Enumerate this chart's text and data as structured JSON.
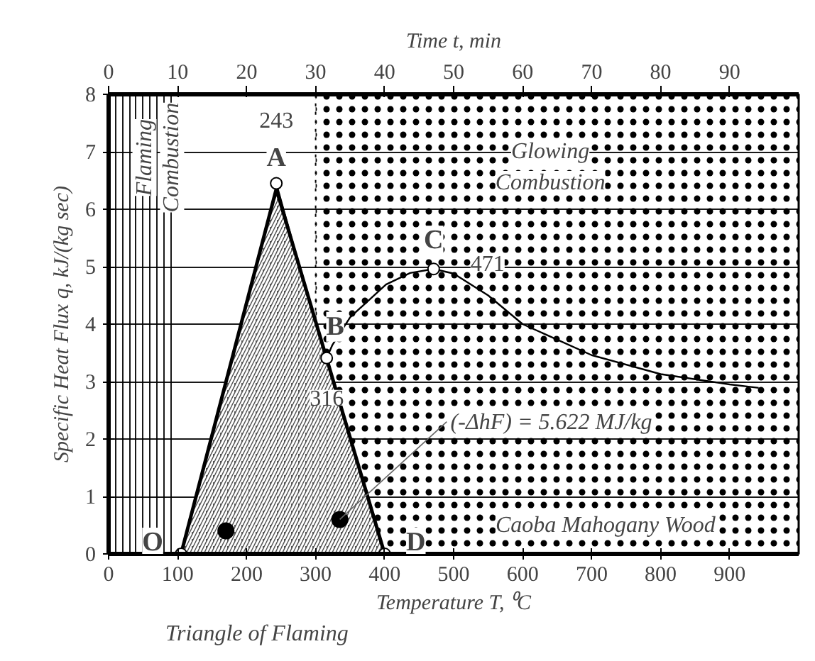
{
  "chart_data": {
    "type": "line",
    "xlabel": "Temperature T, ⁰C",
    "ylabel": "Specific Heat Flux q, kJ/(kg sec)",
    "x2label": "Time t, min",
    "xlim": [
      0,
      1000
    ],
    "xticks": [
      0,
      100,
      200,
      300,
      400,
      500,
      600,
      700,
      800,
      900
    ],
    "x2lim": [
      0,
      100
    ],
    "x2ticks": [
      0,
      10,
      20,
      30,
      40,
      50,
      60,
      70,
      80,
      90
    ],
    "ylim": [
      0,
      8
    ],
    "yticks": [
      0,
      1,
      2,
      3,
      4,
      5,
      6,
      7,
      8
    ],
    "grid": true,
    "series": [
      {
        "type": "area",
        "color": "#555555",
        "x": [
          105,
          243,
          400
        ],
        "values": [
          0,
          6.35,
          0
        ]
      },
      {
        "color": "#000000",
        "marker": "none",
        "x": [
          243,
          280,
          316,
          324,
          350,
          402,
          437,
          471,
          500,
          550,
          600,
          700,
          800,
          900,
          942
        ],
        "values": [
          6.45,
          4.85,
          3.41,
          3.63,
          4.12,
          4.69,
          4.89,
          4.96,
          4.88,
          4.5,
          4.0,
          3.46,
          3.13,
          2.95,
          2.89
        ]
      },
      {
        "type": "scatter",
        "color": "#ffffff",
        "marker": "circle",
        "x": [
          105,
          243,
          316,
          471,
          400
        ],
        "values": [
          0,
          6.45,
          3.41,
          4.96,
          0
        ]
      },
      {
        "type": "scatter",
        "color": "#000000",
        "marker": "circle",
        "x": [
          170,
          335
        ],
        "values": [
          0.4,
          0.6
        ]
      }
    ],
    "bands": [
      {
        "axis": "x",
        "from": 300,
        "to": 1000
      }
    ],
    "annotations": [
      {
        "text": "O",
        "x": 105,
        "y": 0
      },
      {
        "text": "A",
        "x": 243,
        "y": 6.45
      },
      {
        "text": "243",
        "x": 243,
        "y": 6.45
      },
      {
        "text": "B",
        "x": 316,
        "y": 3.41
      },
      {
        "text": "316",
        "x": 316,
        "y": 3.41
      },
      {
        "text": "C",
        "x": 471,
        "y": 4.96
      },
      {
        "text": "471",
        "x": 471,
        "y": 4.96
      },
      {
        "text": "D",
        "x": 400,
        "y": 0
      },
      "Flaming Combustion",
      "Glowing Combustion",
      {
        "text": "(-ΔhF) = 5.622 MJ/kg",
        "x": 335,
        "y": 0.6
      },
      "Caoba Mahogany Wood",
      "Triangle of Flaming"
    ]
  }
}
